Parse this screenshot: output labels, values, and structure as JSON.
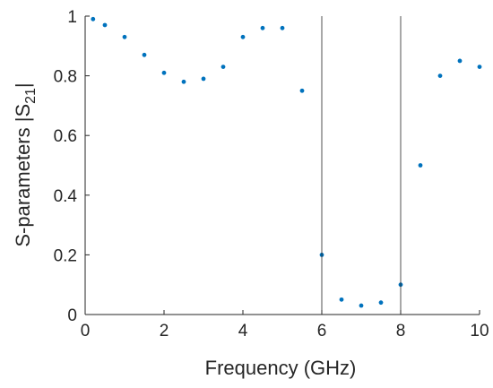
{
  "chart_data": {
    "type": "scatter",
    "title": "",
    "xlabel": "Frequency (GHz)",
    "ylabel": "S-parameters |S",
    "ylabel_sub": "21",
    "ylabel_suffix": "|",
    "xlim": [
      0,
      10
    ],
    "ylim": [
      0,
      1
    ],
    "xticks": [
      "0",
      "2",
      "4",
      "6",
      "8",
      "10"
    ],
    "yticks": [
      "0",
      "0.2",
      "0.4",
      "0.6",
      "0.8",
      "1"
    ],
    "grid": false,
    "reference_lines_x": [
      6,
      8
    ],
    "marker_color": "#0072BD",
    "series": [
      {
        "values": [
          {
            "x": 0.2,
            "y": 0.99
          },
          {
            "x": 0.5,
            "y": 0.97
          },
          {
            "x": 1.0,
            "y": 0.93
          },
          {
            "x": 1.5,
            "y": 0.87
          },
          {
            "x": 2.0,
            "y": 0.81
          },
          {
            "x": 2.5,
            "y": 0.78
          },
          {
            "x": 3.0,
            "y": 0.79
          },
          {
            "x": 3.5,
            "y": 0.83
          },
          {
            "x": 4.0,
            "y": 0.93
          },
          {
            "x": 4.5,
            "y": 0.96
          },
          {
            "x": 5.0,
            "y": 0.96
          },
          {
            "x": 5.5,
            "y": 0.75
          },
          {
            "x": 6.0,
            "y": 0.2
          },
          {
            "x": 6.5,
            "y": 0.05
          },
          {
            "x": 7.0,
            "y": 0.03
          },
          {
            "x": 7.5,
            "y": 0.04
          },
          {
            "x": 8.0,
            "y": 0.1
          },
          {
            "x": 8.5,
            "y": 0.5
          },
          {
            "x": 9.0,
            "y": 0.8
          },
          {
            "x": 9.5,
            "y": 0.85
          },
          {
            "x": 10.0,
            "y": 0.83
          }
        ]
      }
    ]
  }
}
